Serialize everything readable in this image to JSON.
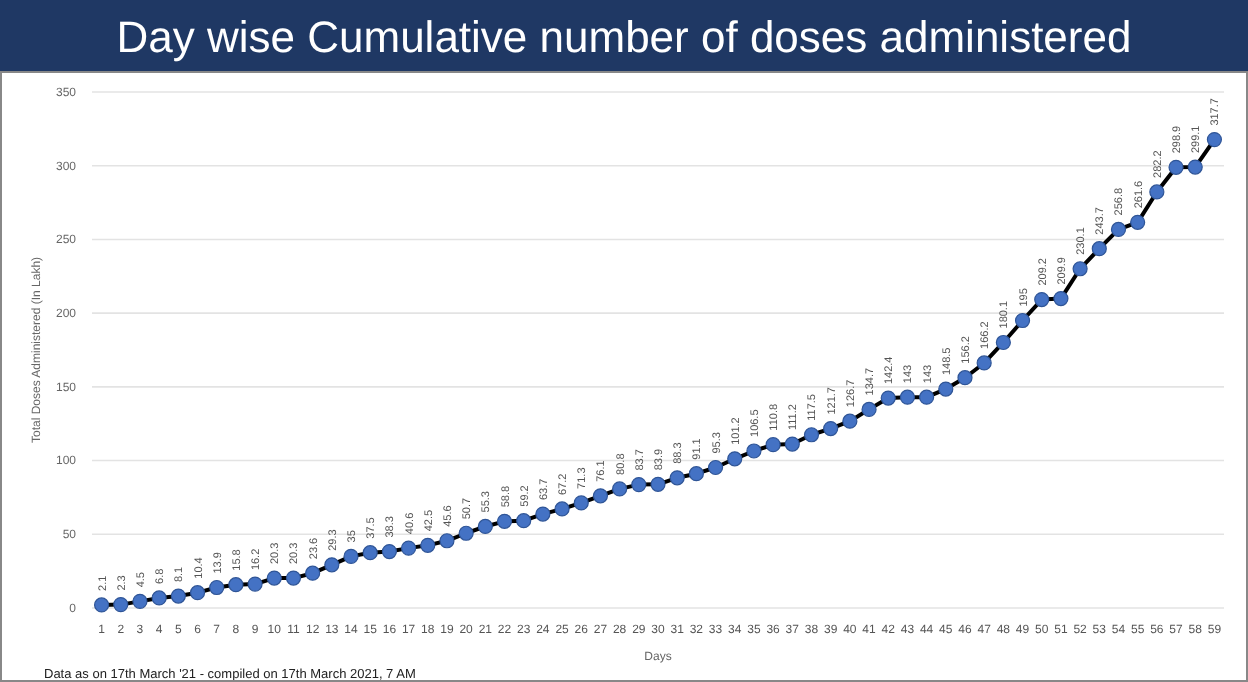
{
  "chart_data": {
    "type": "line",
    "title": "Day wise Cumulative number of doses administered",
    "xlabel": "Days",
    "ylabel": "Total Doses Administered (In Lakh)",
    "x": [
      1,
      2,
      3,
      4,
      5,
      6,
      7,
      8,
      9,
      10,
      11,
      12,
      13,
      14,
      15,
      16,
      17,
      18,
      19,
      20,
      21,
      22,
      23,
      24,
      25,
      26,
      27,
      28,
      29,
      30,
      31,
      32,
      33,
      34,
      35,
      36,
      37,
      38,
      39,
      40,
      41,
      42,
      43,
      44,
      45,
      46,
      47,
      48,
      49,
      50,
      51,
      52,
      53,
      54,
      55,
      56,
      57,
      58,
      59
    ],
    "xlim": [
      0.5,
      59.5
    ],
    "xticks": [
      1,
      2,
      3,
      4,
      5,
      6,
      7,
      8,
      9,
      10,
      11,
      12,
      13,
      14,
      15,
      16,
      17,
      18,
      19,
      20,
      21,
      22,
      23,
      24,
      25,
      26,
      27,
      28,
      29,
      30,
      31,
      32,
      33,
      34,
      35,
      36,
      37,
      38,
      39,
      40,
      41,
      42,
      43,
      44,
      45,
      46,
      47,
      48,
      49,
      50,
      51,
      52,
      53,
      54,
      55,
      56,
      57,
      58,
      59
    ],
    "series": [
      {
        "color": "#4472c4",
        "values": [
          2.1,
          2.3,
          4.5,
          6.8,
          8.1,
          10.4,
          13.9,
          15.8,
          16.2,
          20.3,
          20.3,
          23.6,
          29.3,
          35,
          37.5,
          38.3,
          40.6,
          42.5,
          45.6,
          50.7,
          55.3,
          58.8,
          59.2,
          63.7,
          67.2,
          71.3,
          76.1,
          80.8,
          83.7,
          83.9,
          88.3,
          91.1,
          95.3,
          101.2,
          106.5,
          110.8,
          111.2,
          117.5,
          121.7,
          126.7,
          134.7,
          142.4,
          143,
          143,
          148.5,
          156.2,
          166.2,
          180.1,
          195,
          209.2,
          209.9,
          230.1,
          243.7,
          256.8,
          261.6,
          282.2,
          298.9,
          299.1,
          317.7
        ]
      }
    ],
    "ylim": [
      0,
      350
    ],
    "yticks": [
      0,
      50,
      100,
      150,
      200,
      250,
      300,
      350
    ],
    "grid": "y",
    "marker": "circle",
    "line_style": "solid",
    "data_labels": true,
    "annotations": [
      "Data as on 17th March '21 - compiled on 17th March 2021, 7 AM"
    ]
  }
}
